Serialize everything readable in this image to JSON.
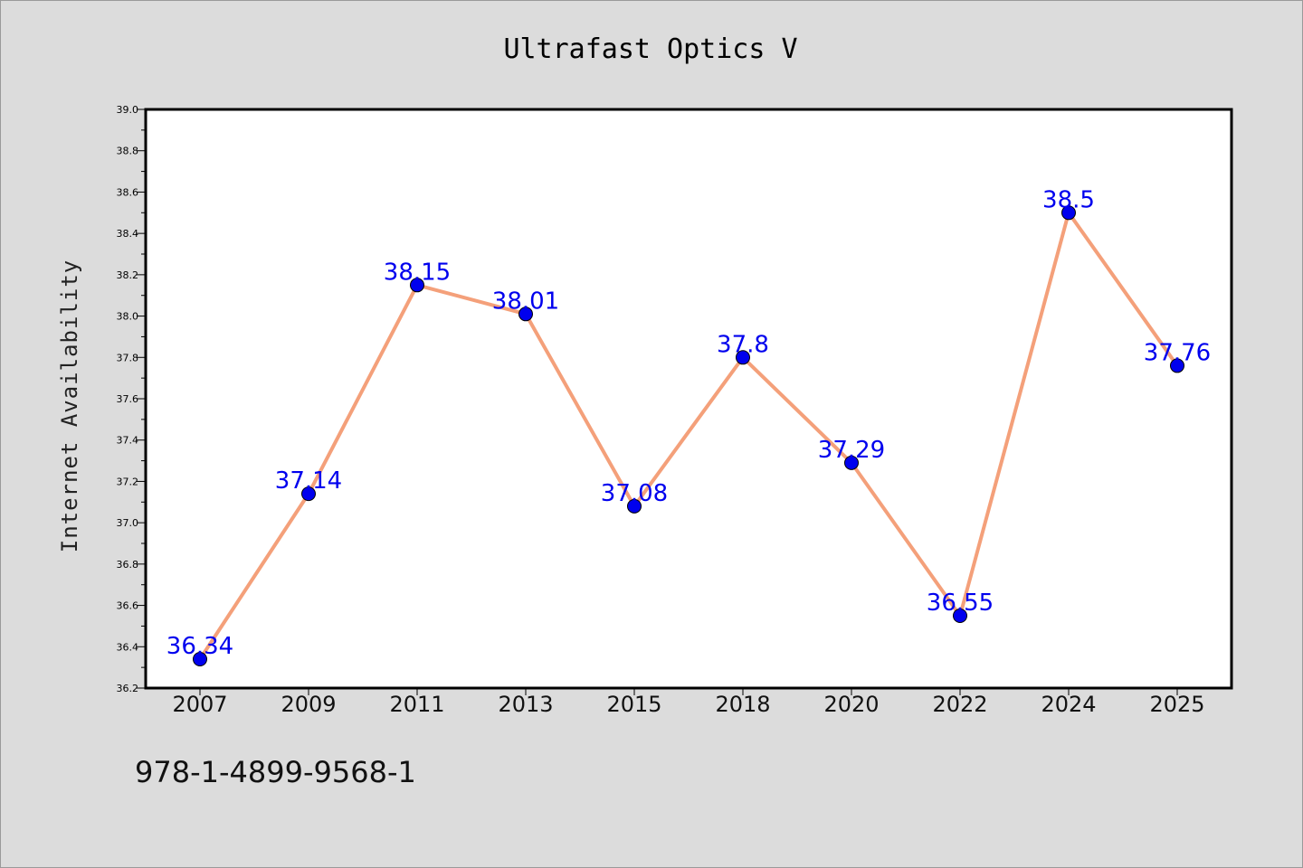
{
  "chart_data": {
    "type": "line",
    "title": "Ultrafast Optics V",
    "xlabel": "",
    "ylabel": "Internet Availability",
    "categories": [
      "2007",
      "2009",
      "2011",
      "2013",
      "2015",
      "2018",
      "2020",
      "2022",
      "2024",
      "2025"
    ],
    "series": [
      {
        "values": [
          36.34,
          37.14,
          38.15,
          38.01,
          37.08,
          37.8,
          37.29,
          36.55,
          38.5,
          37.76
        ],
        "data_labels": [
          "36.34",
          "37.14",
          "38.15",
          "38.01",
          "37.08",
          "37.8",
          "37.29",
          "36.55",
          "38.5",
          "37.76"
        ],
        "line_color": "#f4a07a",
        "marker_color": "#0000ee"
      }
    ],
    "ylim": [
      36.2,
      39.0
    ],
    "yticks": [
      "36.2",
      "36.4",
      "36.6",
      "36.8",
      "37.0",
      "37.2",
      "37.4",
      "37.6",
      "37.8",
      "38.0",
      "38.2",
      "38.4",
      "38.6",
      "38.8",
      "39.0"
    ],
    "grid": false,
    "legend": "none",
    "label_color": "#0000ee"
  },
  "footer": {
    "isbn": "978-1-4899-9568-1"
  }
}
